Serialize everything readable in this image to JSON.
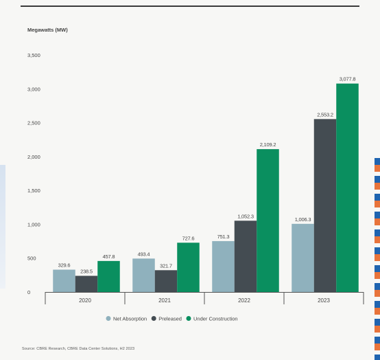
{
  "chart_data": {
    "type": "bar",
    "ylabel": "Megawatts (MW)",
    "categories": [
      "2020",
      "2021",
      "2022",
      "2023"
    ],
    "ylim": [
      0,
      3500
    ],
    "yticks": [
      0,
      500,
      1000,
      1500,
      2000,
      2500,
      3000,
      3500
    ],
    "ytick_labels": [
      "0",
      "500",
      "1,000",
      "1,500",
      "2,000",
      "2,500",
      "3,000",
      "3,500"
    ],
    "grid": false,
    "legend_position": "bottom",
    "series": [
      {
        "name": "Net Absorption",
        "color": "#8fb1bd",
        "values": [
          329.6,
          493.4,
          751.3,
          1006.3
        ],
        "labels": [
          "329.6",
          "493.4",
          "751.3",
          "1,006.3"
        ]
      },
      {
        "name": "Preleased",
        "color": "#444c52",
        "values": [
          238.5,
          321.7,
          1052.3,
          2553.2
        ],
        "labels": [
          "238.5",
          "321.7",
          "1,052.3",
          "2,553.2"
        ]
      },
      {
        "name": "Under Construction",
        "color": "#0a8f5f",
        "values": [
          457.8,
          727.6,
          2109.2,
          3077.8
        ],
        "labels": [
          "457.8",
          "727.6",
          "2,109.2",
          "3,077.8"
        ]
      }
    ]
  },
  "source": "Source: CBRE Research, CBRE Data Center Solutions, H2 2023"
}
